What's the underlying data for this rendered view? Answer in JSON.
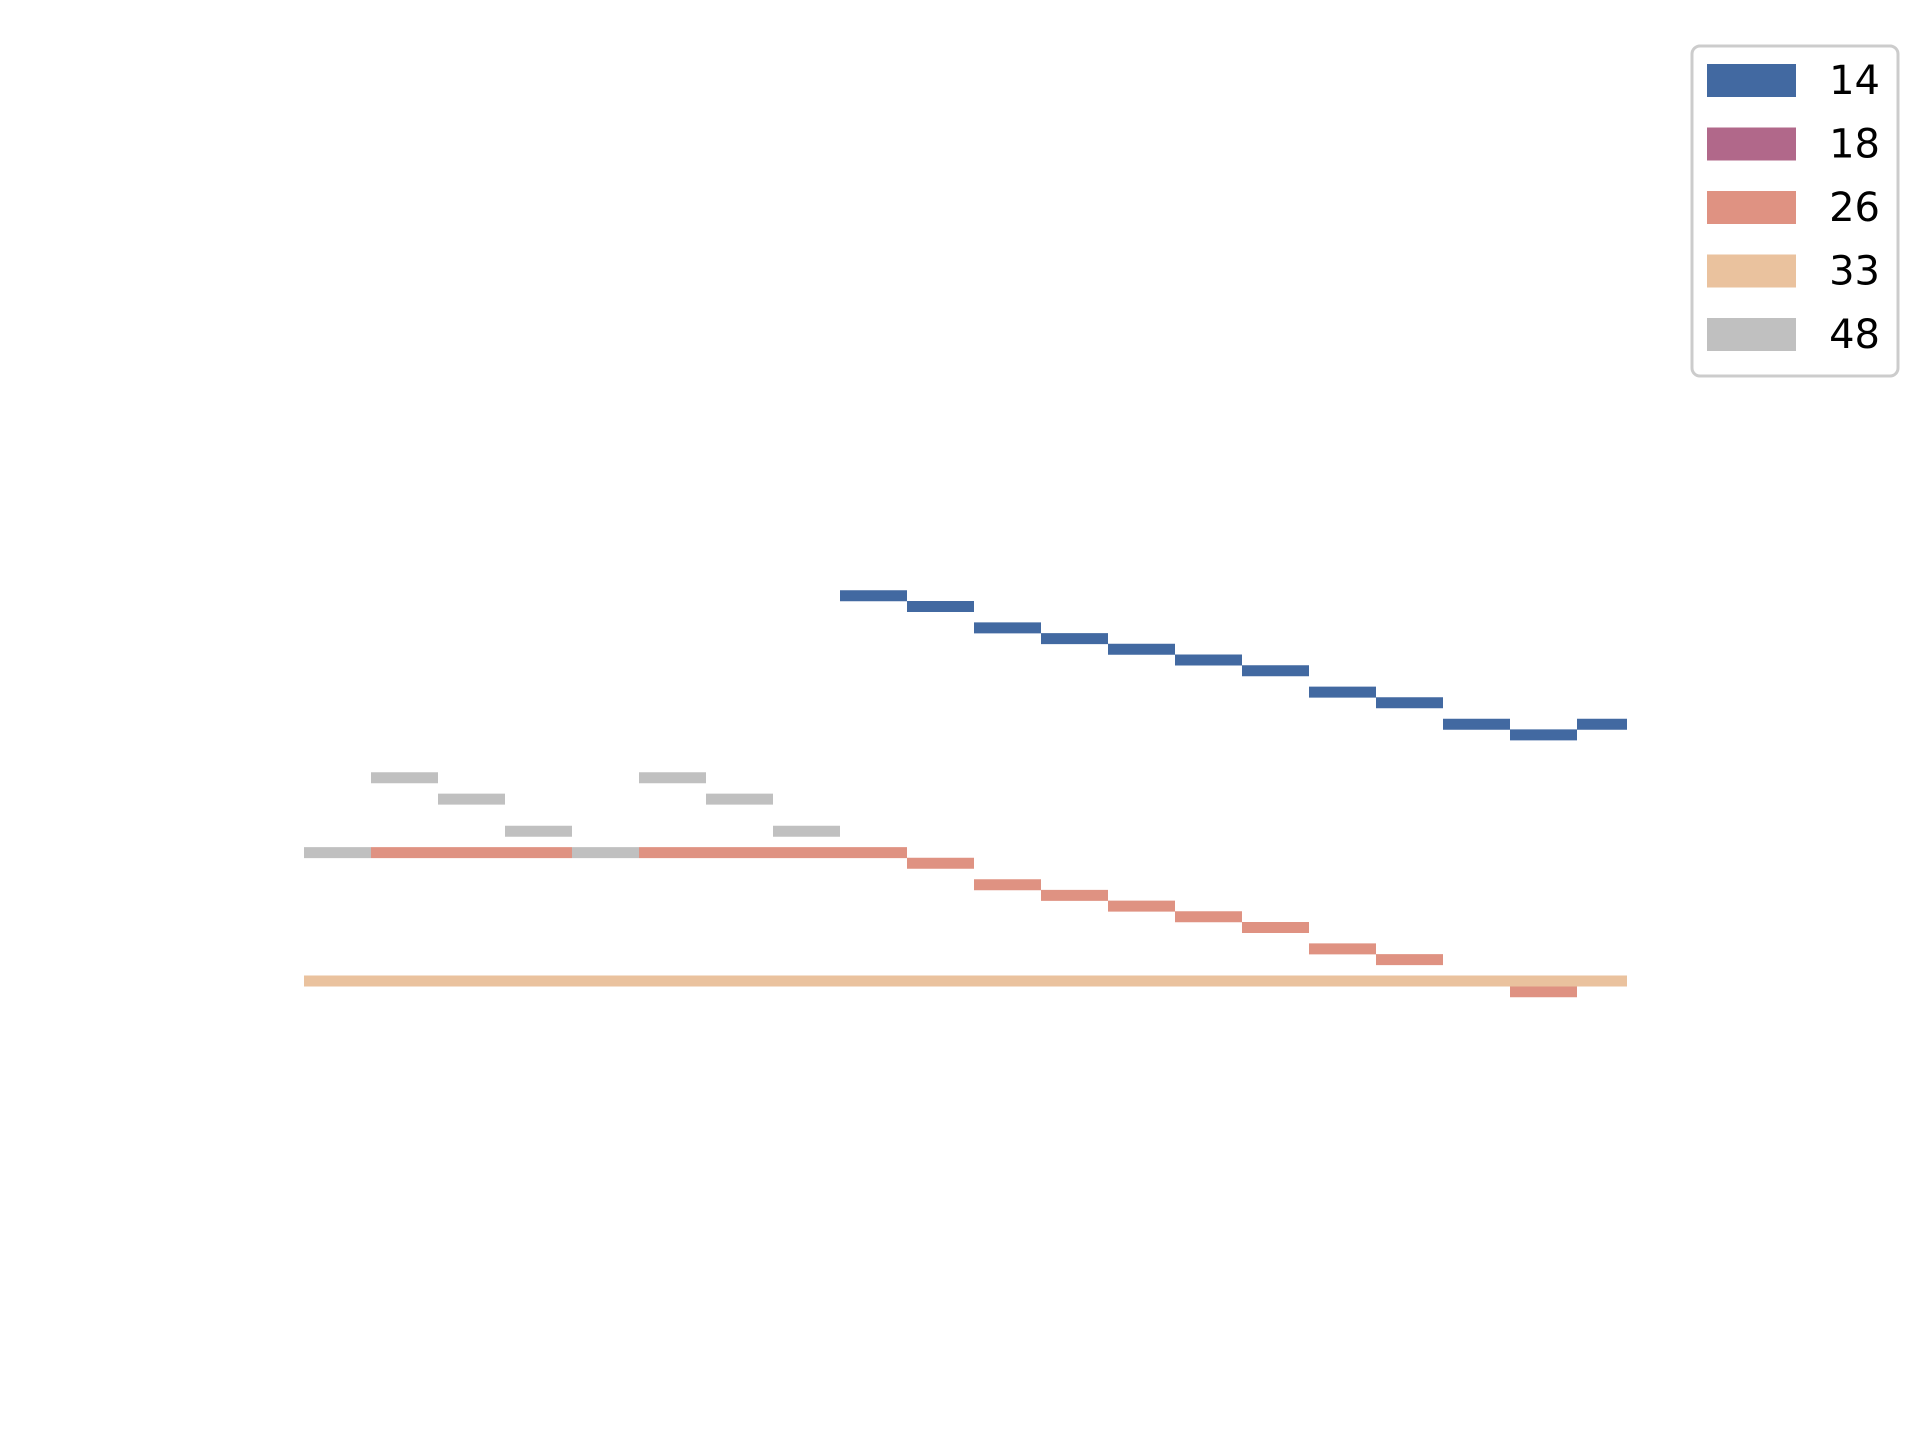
{
  "chart_data": {
    "type": "line",
    "drawstyle": "steps",
    "title": "",
    "xlabel": "",
    "ylabel": "",
    "axes_visible": false,
    "grid": false,
    "legend_position": "top-right",
    "x": [
      0,
      1,
      2,
      3,
      4,
      5,
      6,
      7,
      8,
      9,
      10,
      11,
      12,
      13,
      14,
      15,
      16,
      17,
      18,
      19
    ],
    "series": [
      {
        "name": "14",
        "color": "#4269a1",
        "values": [
          null,
          null,
          null,
          null,
          null,
          null,
          null,
          null,
          36,
          35,
          33,
          32,
          31,
          30,
          29,
          27,
          26,
          24,
          23,
          24
        ]
      },
      {
        "name": "18",
        "color": "#b1688a",
        "values": [
          null,
          null,
          null,
          null,
          null,
          null,
          null,
          null,
          null,
          null,
          null,
          null,
          null,
          null,
          null,
          null,
          null,
          null,
          null,
          null
        ]
      },
      {
        "name": "26",
        "color": "#df9282",
        "values": [
          null,
          12,
          12,
          12,
          null,
          12,
          12,
          12,
          12,
          11,
          9,
          8,
          7,
          6,
          5,
          3,
          2,
          null,
          -1,
          null
        ]
      },
      {
        "name": "33",
        "color": "#eac29e",
        "values": [
          0,
          0,
          0,
          0,
          0,
          0,
          0,
          0,
          0,
          0,
          0,
          0,
          0,
          0,
          0,
          0,
          0,
          0,
          0,
          0
        ]
      },
      {
        "name": "48",
        "color": "#c0c0c0",
        "values": [
          12,
          19,
          17,
          14,
          12,
          19,
          17,
          14,
          null,
          null,
          null,
          null,
          null,
          null,
          null,
          null,
          null,
          null,
          null,
          null
        ]
      }
    ],
    "legend": [
      "14",
      "18",
      "26",
      "33",
      "48"
    ]
  }
}
